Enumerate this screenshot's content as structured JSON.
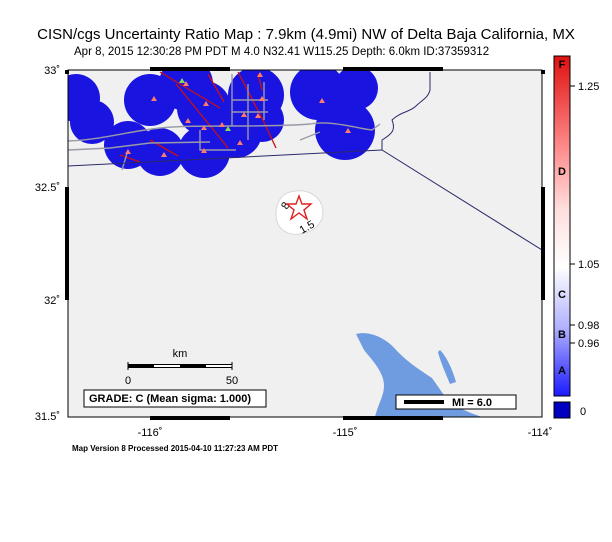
{
  "map": {
    "title": "CISN/cgs Uncertainty Ratio Map : 7.9km (4.9mi) NW of Delta Baja California, MX",
    "subtitle": "Apr  8, 2015 12:30:28 PM PDT   M 4.0   N32.41 W115.25   Depth: 6.0km   ID:37359312",
    "footer": "Map Version 8 Processed 2015-04-10 11:27:23 AM PDT",
    "lat_ticks": [
      "33˚",
      "32.5˚",
      "32˚",
      "31.5˚"
    ],
    "lon_ticks": [
      "-116˚",
      "-115˚",
      "-114˚"
    ],
    "scalebar": {
      "unit": "km",
      "labels": [
        "0",
        "50"
      ]
    },
    "grade": "GRADE: C (Mean sigma: 1.000)",
    "mi_legend": "MI = 6.0",
    "contour_labels": [
      "8",
      "1.5"
    ],
    "colors": {
      "station_circle": "#1a14e0",
      "epicenter": "#e02020",
      "water": "#6f9be0",
      "land": "#f0f0f0"
    }
  },
  "colorbar": {
    "letters": [
      "F",
      "D",
      "C",
      "B",
      "A"
    ],
    "values": [
      "1.25",
      "1.05",
      "0.98",
      "0.96",
      "0"
    ]
  }
}
